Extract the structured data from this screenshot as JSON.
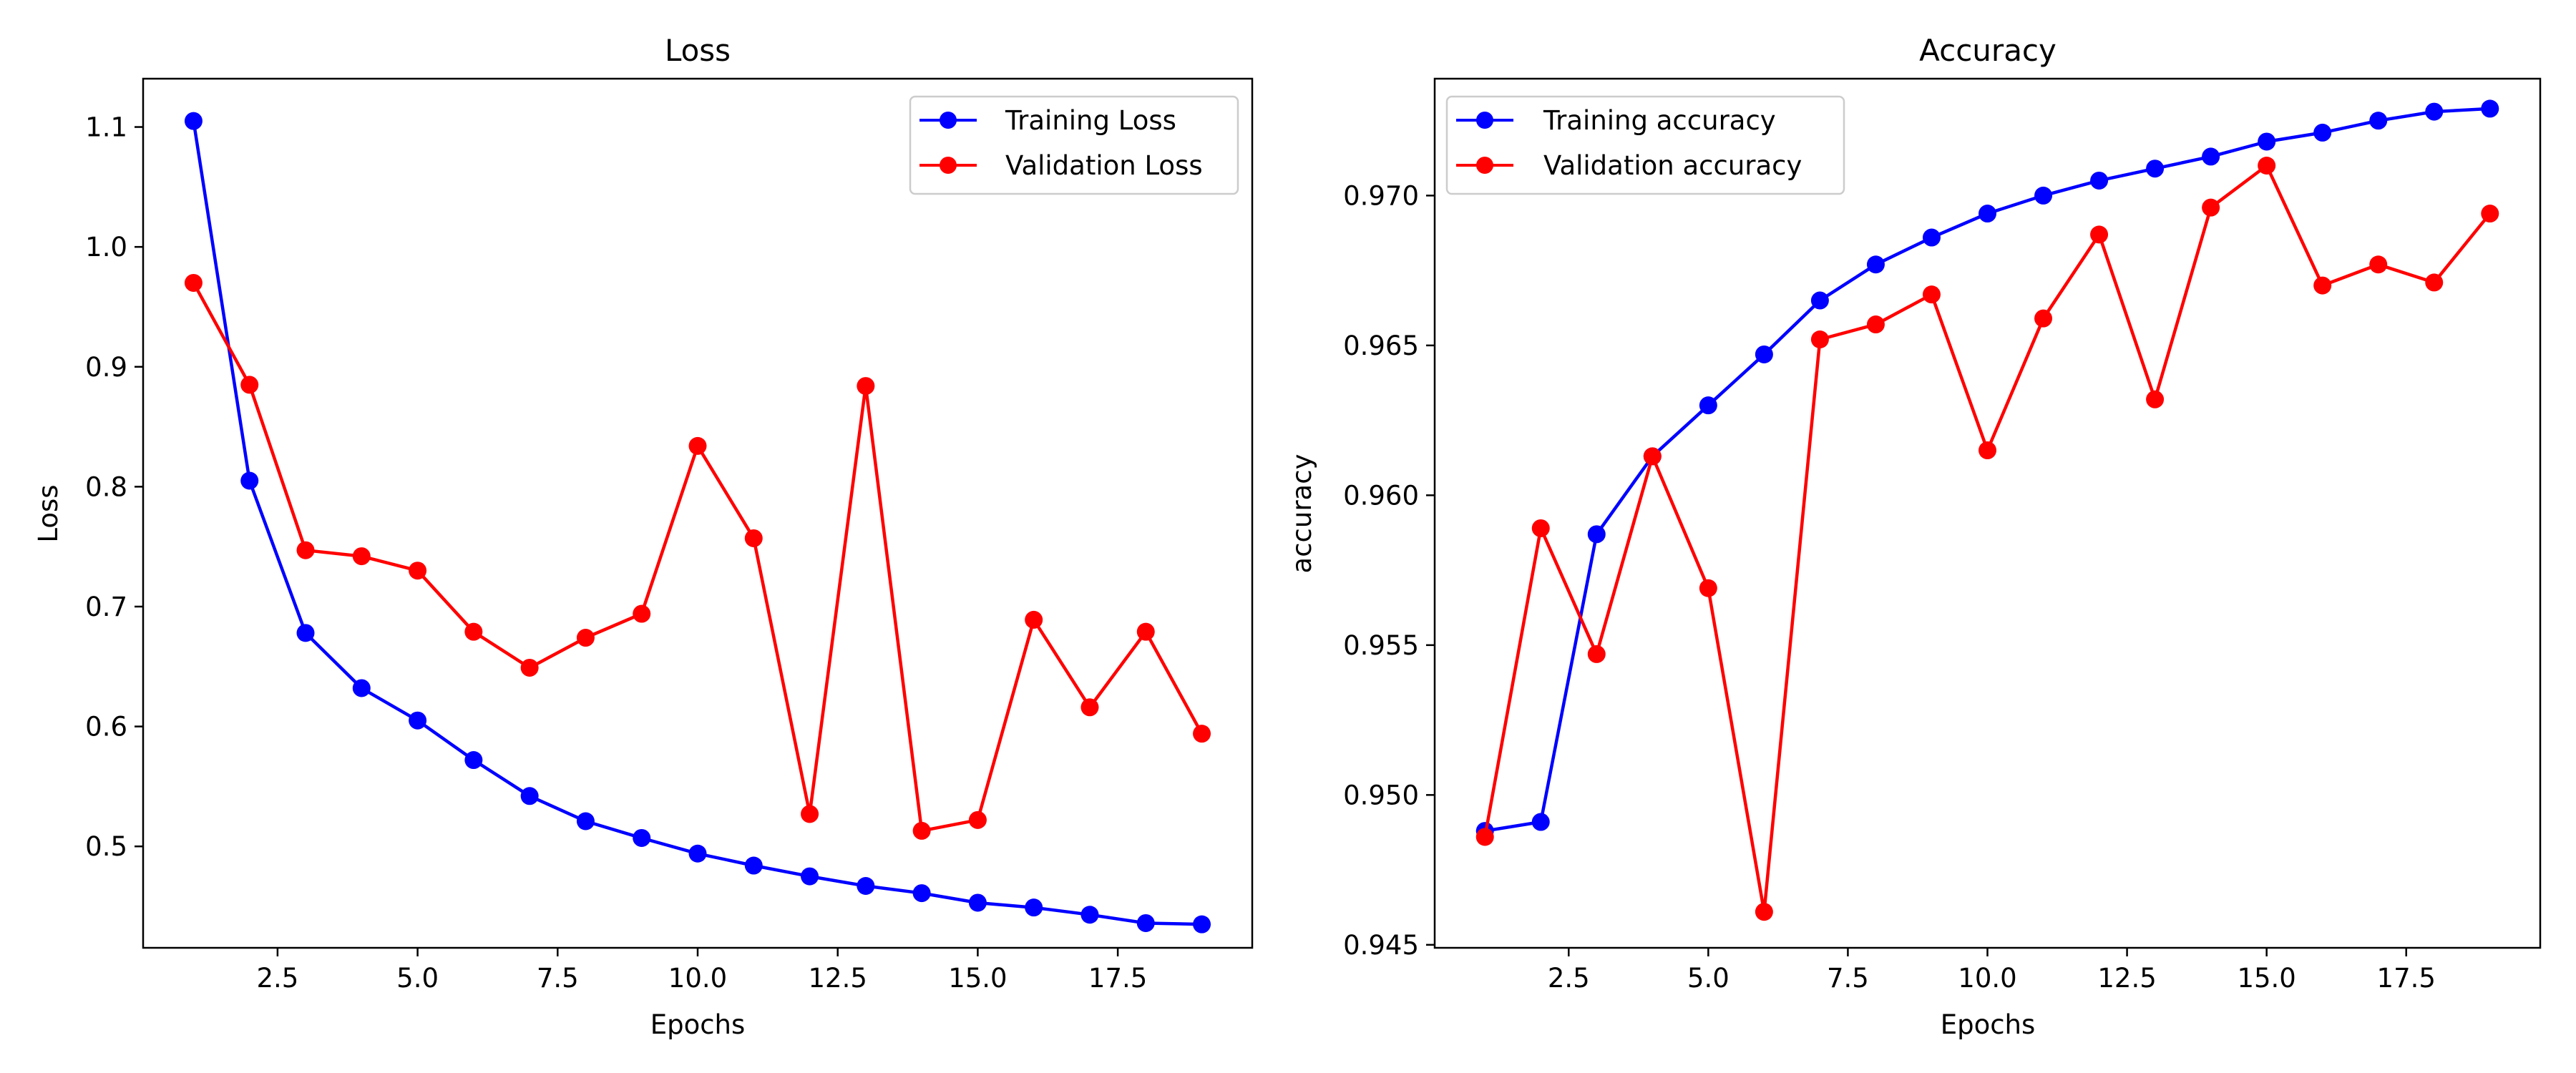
{
  "chart_data": [
    {
      "type": "line",
      "title": "Loss",
      "xlabel": "Epochs",
      "ylabel": "Loss",
      "xlim": [
        0.1,
        19.9
      ],
      "ylim": [
        0.4154,
        1.1403
      ],
      "xticks": [
        2.5,
        5.0,
        7.5,
        10.0,
        12.5,
        15.0,
        17.5
      ],
      "xtick_labels": [
        "2.5",
        "5.0",
        "7.5",
        "10.0",
        "12.5",
        "15.0",
        "17.5"
      ],
      "yticks": [
        0.5,
        0.6,
        0.7,
        0.8,
        0.9,
        1.0,
        1.1
      ],
      "ytick_labels": [
        "0.5",
        "0.6",
        "0.7",
        "0.8",
        "0.9",
        "1.0",
        "1.1"
      ],
      "legend_position": "top-right",
      "x": [
        1,
        2,
        3,
        4,
        5,
        6,
        7,
        8,
        9,
        10,
        11,
        12,
        13,
        14,
        15,
        16,
        17,
        18,
        19
      ],
      "series": [
        {
          "name": "Training Loss",
          "color": "#0000ff",
          "values": [
            1.105,
            0.805,
            0.678,
            0.632,
            0.605,
            0.572,
            0.542,
            0.521,
            0.507,
            0.494,
            0.484,
            0.475,
            0.467,
            0.461,
            0.453,
            0.449,
            0.443,
            0.436,
            0.435
          ]
        },
        {
          "name": "Validation Loss",
          "color": "#ff0000",
          "values": [
            0.97,
            0.885,
            0.747,
            0.742,
            0.73,
            0.679,
            0.649,
            0.674,
            0.694,
            0.834,
            0.757,
            0.527,
            0.884,
            0.513,
            0.522,
            0.689,
            0.616,
            0.679,
            0.594
          ]
        }
      ]
    },
    {
      "type": "line",
      "title": "Accuracy",
      "xlabel": "Epochs",
      "ylabel": "accuracy",
      "xlim": [
        0.1,
        19.9
      ],
      "ylim": [
        0.9449,
        0.9739
      ],
      "xticks": [
        2.5,
        5.0,
        7.5,
        10.0,
        12.5,
        15.0,
        17.5
      ],
      "xtick_labels": [
        "2.5",
        "5.0",
        "7.5",
        "10.0",
        "12.5",
        "15.0",
        "17.5"
      ],
      "yticks": [
        0.945,
        0.95,
        0.955,
        0.96,
        0.965,
        0.97
      ],
      "ytick_labels": [
        "0.945",
        "0.950",
        "0.955",
        "0.960",
        "0.965",
        "0.970"
      ],
      "legend_position": "top-left",
      "x": [
        1,
        2,
        3,
        4,
        5,
        6,
        7,
        8,
        9,
        10,
        11,
        12,
        13,
        14,
        15,
        16,
        17,
        18,
        19
      ],
      "series": [
        {
          "name": "Training accuracy",
          "color": "#0000ff",
          "values": [
            0.9488,
            0.9491,
            0.9587,
            0.9613,
            0.963,
            0.9647,
            0.9665,
            0.9677,
            0.9686,
            0.9694,
            0.97,
            0.9705,
            0.9709,
            0.9713,
            0.9718,
            0.9721,
            0.9725,
            0.9728,
            0.9729
          ]
        },
        {
          "name": "Validation accuracy",
          "color": "#ff0000",
          "values": [
            0.9486,
            0.9589,
            0.9547,
            0.9613,
            0.9569,
            0.9461,
            0.9652,
            0.9657,
            0.9667,
            0.9615,
            0.9659,
            0.9687,
            0.9632,
            0.9696,
            0.971,
            0.967,
            0.9677,
            0.9671,
            0.9694
          ]
        }
      ]
    }
  ]
}
